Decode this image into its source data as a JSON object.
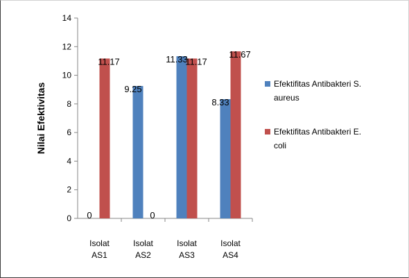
{
  "chart_data": {
    "type": "bar",
    "categories": [
      [
        "Isolat",
        "AS1"
      ],
      [
        "Isolat",
        "AS2"
      ],
      [
        "Isolat",
        "AS3"
      ],
      [
        "Isolat",
        "AS4"
      ]
    ],
    "series": [
      {
        "name": "Efektifitas Antibakteri S. aureus",
        "legend_lines": [
          "Efektifitas Antibakteri S.",
          "aureus"
        ],
        "color": "#4f81bd",
        "values": [
          0,
          9.25,
          11.33,
          8.33
        ],
        "labels": [
          "0",
          "9.25",
          "11.33",
          "8.33"
        ]
      },
      {
        "name": "Efektifitas Antibakteri E. coli",
        "legend_lines": [
          "Efektifitas Antibakteri E.",
          "coli"
        ],
        "color": "#c0504d",
        "values": [
          11.17,
          0,
          11.17,
          11.67
        ],
        "labels": [
          "11.17",
          "0",
          "11.17",
          "11.67"
        ]
      }
    ],
    "ylabel": "Nilai Efektivitas",
    "xlabel": "",
    "ylim": [
      0,
      14
    ],
    "yticks": [
      "0",
      "2",
      "4",
      "6",
      "8",
      "10",
      "12",
      "14"
    ],
    "grid": false,
    "legend": "right"
  }
}
